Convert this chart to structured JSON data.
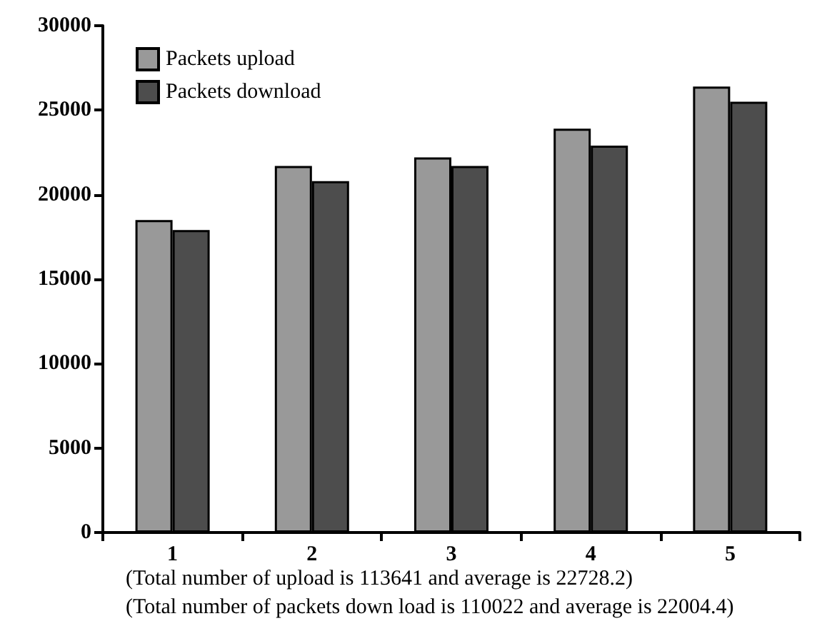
{
  "chart_data": {
    "type": "bar",
    "categories": [
      "1",
      "2",
      "3",
      "4",
      "5"
    ],
    "series": [
      {
        "name": "Packets upload",
        "color": "#999999",
        "values": [
          18500,
          21700,
          22200,
          23900,
          26400
        ]
      },
      {
        "name": "Packets download",
        "color": "#4d4d4d",
        "values": [
          17900,
          20800,
          21700,
          22900,
          25500
        ]
      }
    ],
    "ylim": [
      0,
      30000
    ],
    "yticks": [
      0,
      5000,
      10000,
      15000,
      20000,
      25000,
      30000
    ],
    "grid": false,
    "legend": "top left",
    "annotations": [
      "(Total number of upload is 113641 and average is 22728.2)",
      "(Total number of packets down load is 110022 and average is 22004.4)"
    ]
  }
}
